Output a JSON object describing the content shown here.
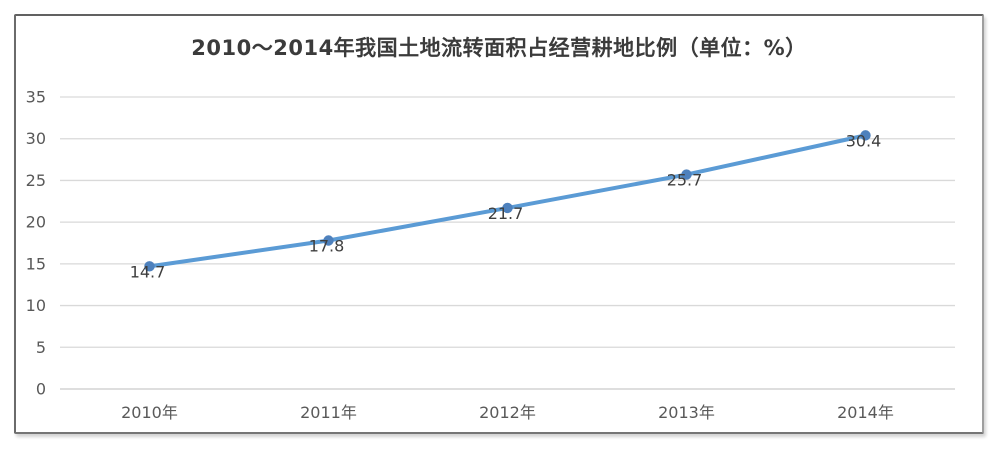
{
  "chart_data": {
    "type": "line",
    "title": "2010～2014年我国土地流转面积占经营耕地比例（单位：%）",
    "categories": [
      "2010年",
      "2011年",
      "2012年",
      "2013年",
      "2014年"
    ],
    "values": [
      14.7,
      17.8,
      21.7,
      25.7,
      30.4
    ],
    "data_labels": [
      "14.7",
      "17.8",
      "21.7",
      "25.7",
      "30.4"
    ],
    "xlabel": "",
    "ylabel": "",
    "ylim": [
      0,
      35
    ],
    "yticks": [
      0,
      5,
      10,
      15,
      20,
      25,
      30,
      35
    ],
    "grid": true,
    "legend_position": "none",
    "colors": {
      "line": "#5b9bd5",
      "marker": "#4e81bd",
      "gridline": "#d9d9d9",
      "axis_line": "#c9c9c9",
      "axis_labels": "#595959",
      "data_labels": "#3f3f3f",
      "title": "#3b3b3b",
      "frame_background": "#ffffff"
    }
  }
}
